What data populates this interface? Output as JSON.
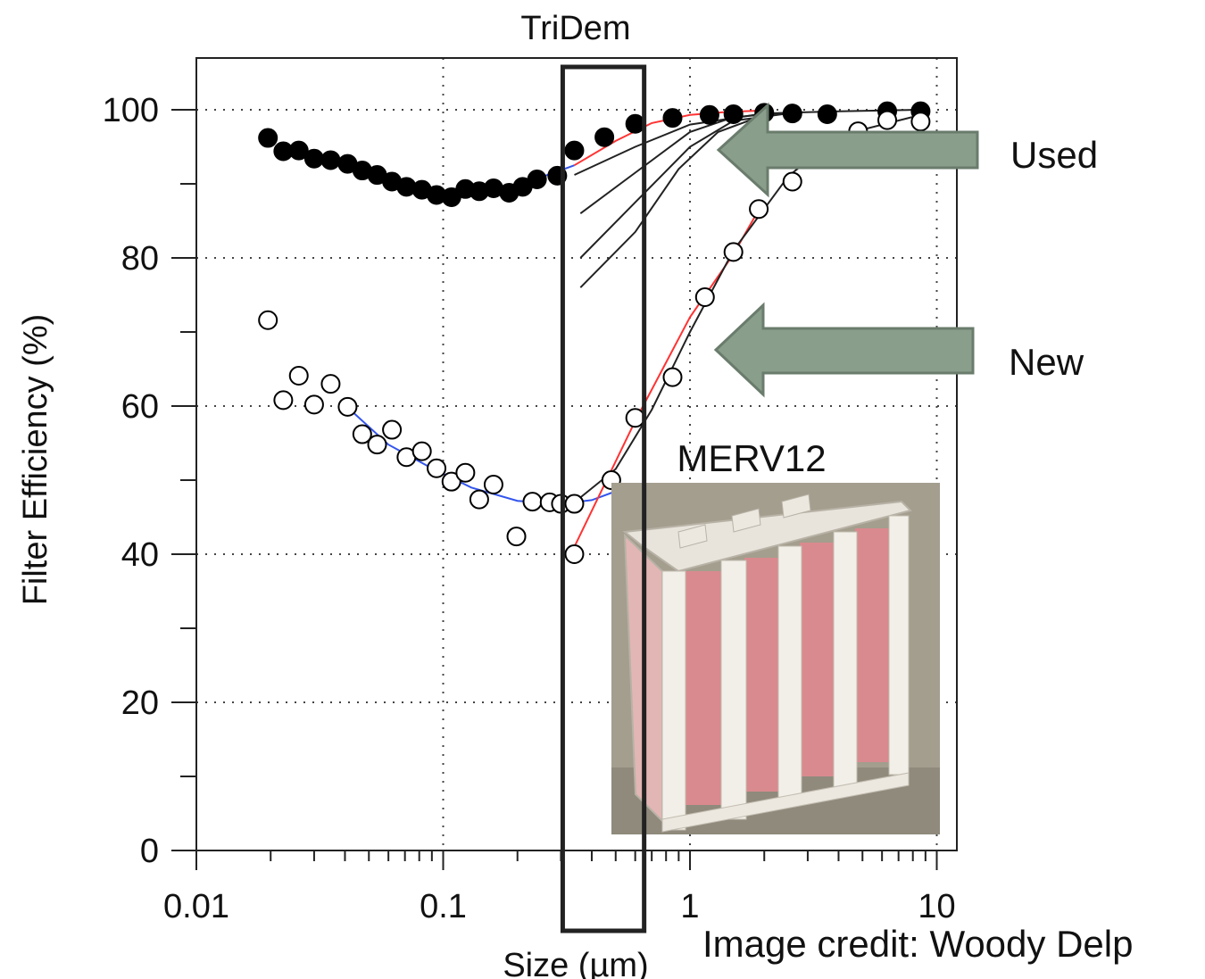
{
  "chart_data": {
    "type": "scatter",
    "title": "TriDem",
    "xlabel": "Size (µm)",
    "ylabel": "Filter Efficiency (%)",
    "x_scale": "log",
    "xlim": [
      0.01,
      12
    ],
    "ylim": [
      0,
      105
    ],
    "x_ticks": [
      "0.01",
      "0.1",
      "1",
      "10"
    ],
    "y_ticks": [
      "0",
      "20",
      "40",
      "60",
      "80",
      "100"
    ],
    "grid": true,
    "series": [
      {
        "marker": "filled-circle",
        "color": "#000000",
        "points": [
          [
            0.0195,
            96.2
          ],
          [
            0.0225,
            94.4
          ],
          [
            0.026,
            94.5
          ],
          [
            0.03,
            93.4
          ],
          [
            0.035,
            93.2
          ],
          [
            0.041,
            92.7
          ],
          [
            0.047,
            91.8
          ],
          [
            0.054,
            91.2
          ],
          [
            0.062,
            90.3
          ],
          [
            0.071,
            89.6
          ],
          [
            0.082,
            89.2
          ],
          [
            0.094,
            88.5
          ],
          [
            0.108,
            88.2
          ],
          [
            0.123,
            89.3
          ],
          [
            0.14,
            89.0
          ],
          [
            0.16,
            89.4
          ],
          [
            0.185,
            88.8
          ],
          [
            0.21,
            89.6
          ],
          [
            0.24,
            90.6
          ],
          [
            0.29,
            91.1
          ],
          [
            0.34,
            94.5
          ],
          [
            0.45,
            96.3
          ],
          [
            0.6,
            98.1
          ],
          [
            0.85,
            98.9
          ],
          [
            1.2,
            99.3
          ],
          [
            1.5,
            99.4
          ],
          [
            2.0,
            99.6
          ],
          [
            2.6,
            99.5
          ],
          [
            3.6,
            99.4
          ],
          [
            6.3,
            99.8
          ],
          [
            8.6,
            99.8
          ]
        ]
      },
      {
        "marker": "open-circle",
        "color": "#000000",
        "points": [
          [
            0.0195,
            71.6
          ],
          [
            0.0225,
            60.8
          ],
          [
            0.026,
            64.1
          ],
          [
            0.03,
            60.2
          ],
          [
            0.035,
            63.0
          ],
          [
            0.041,
            59.9
          ],
          [
            0.047,
            56.2
          ],
          [
            0.054,
            54.8
          ],
          [
            0.062,
            56.8
          ],
          [
            0.071,
            53.1
          ],
          [
            0.082,
            53.9
          ],
          [
            0.094,
            51.6
          ],
          [
            0.108,
            49.8
          ],
          [
            0.123,
            51.0
          ],
          [
            0.14,
            47.4
          ],
          [
            0.16,
            49.4
          ],
          [
            0.198,
            42.4
          ],
          [
            0.23,
            47.1
          ],
          [
            0.27,
            47.0
          ],
          [
            0.3,
            46.8
          ],
          [
            0.34,
            46.8
          ],
          [
            0.34,
            40.0
          ],
          [
            0.48,
            50.0
          ],
          [
            0.6,
            58.4
          ],
          [
            0.85,
            63.9
          ],
          [
            1.15,
            74.7
          ],
          [
            1.5,
            80.8
          ],
          [
            1.9,
            86.6
          ],
          [
            2.6,
            90.3
          ],
          [
            4.8,
            97.1
          ],
          [
            6.3,
            98.6
          ],
          [
            8.6,
            98.4
          ]
        ]
      }
    ],
    "fits": [
      {
        "color": "#3355ee",
        "points": [
          [
            0.042,
            92.4
          ],
          [
            0.06,
            90.4
          ],
          [
            0.1,
            88.7
          ],
          [
            0.16,
            88.9
          ],
          [
            0.25,
            90.9
          ],
          [
            0.34,
            92.5
          ]
        ]
      },
      {
        "color": "#3355ee",
        "points": [
          [
            0.042,
            59.5
          ],
          [
            0.06,
            54.8
          ],
          [
            0.09,
            51.6
          ],
          [
            0.13,
            49.0
          ],
          [
            0.2,
            47.2
          ],
          [
            0.3,
            46.8
          ],
          [
            0.4,
            47.3
          ],
          [
            0.5,
            48.5
          ]
        ]
      },
      {
        "color": "#ff3333",
        "points": [
          [
            0.34,
            92.5
          ],
          [
            0.5,
            95.8
          ],
          [
            0.7,
            98.2
          ],
          [
            1.0,
            99.3
          ],
          [
            1.4,
            99.7
          ],
          [
            2.0,
            99.9
          ]
        ]
      },
      {
        "color": "#ff3333",
        "points": [
          [
            0.34,
            41.0
          ],
          [
            0.6,
            58.0
          ],
          [
            1.0,
            72.0
          ],
          [
            1.5,
            80.5
          ],
          [
            1.9,
            86.5
          ]
        ]
      },
      {
        "color": "#222222",
        "points": [
          [
            0.34,
            91.2
          ],
          [
            0.6,
            95.0
          ],
          [
            1.0,
            98.0
          ],
          [
            2.0,
            99.5
          ],
          [
            4.0,
            99.8
          ],
          [
            8.6,
            100.0
          ]
        ]
      },
      {
        "color": "#222222",
        "points": [
          [
            0.36,
            86.0
          ],
          [
            0.6,
            91.5
          ],
          [
            1.0,
            97.0
          ],
          [
            1.5,
            99.0
          ],
          [
            2.5,
            99.6
          ]
        ]
      },
      {
        "color": "#222222",
        "points": [
          [
            0.36,
            80.0
          ],
          [
            0.6,
            87.5
          ],
          [
            1.0,
            95.0
          ],
          [
            1.5,
            98.5
          ],
          [
            2.5,
            99.5
          ]
        ]
      },
      {
        "color": "#222222",
        "points": [
          [
            0.36,
            76.0
          ],
          [
            0.6,
            83.5
          ],
          [
            0.9,
            92.0
          ],
          [
            1.3,
            97.0
          ],
          [
            2.0,
            99.3
          ]
        ]
      },
      {
        "color": "#222222",
        "points": [
          [
            0.34,
            47.0
          ],
          [
            0.5,
            51.5
          ],
          [
            0.7,
            59.5
          ],
          [
            1.0,
            70.0
          ],
          [
            1.5,
            81.0
          ],
          [
            2.5,
            91.0
          ],
          [
            4.0,
            96.5
          ],
          [
            8.6,
            99.3
          ]
        ]
      }
    ],
    "annotations": [
      "Used",
      "New",
      "MERV12"
    ],
    "credit": "Image credit: Woody Delp",
    "highlight_band_um": [
      0.3,
      0.6
    ],
    "arrow_color": "#8a9e8c",
    "photo_label": "MERV12",
    "photo_colors": {
      "frame": "#e8e4dc",
      "media": "#d98a8e",
      "background": "#a39e8e"
    }
  }
}
